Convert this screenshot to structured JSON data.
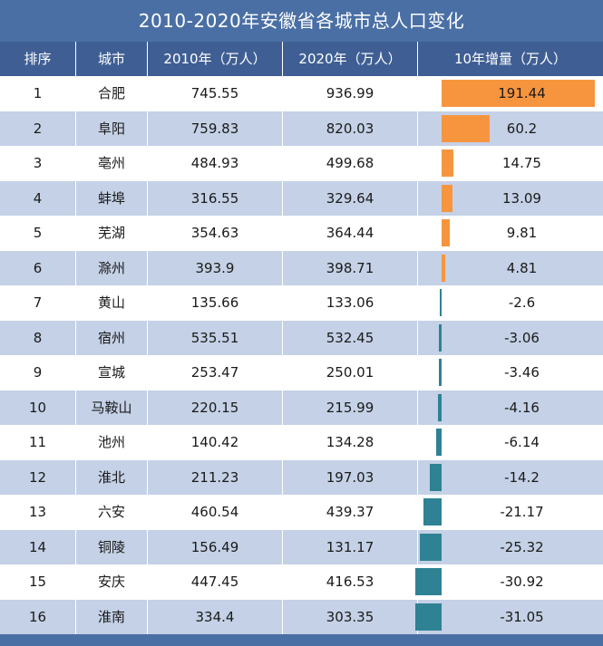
{
  "title": "2010-2020年安徽省各城市总人口变化",
  "headers": {
    "rank": "排序",
    "city": "城市",
    "y2010": "2010年（万人）",
    "y2020": "2020年（万人）",
    "growth": "10年增量（万人）"
  },
  "rows": [
    {
      "rank": "1",
      "city": "合肥",
      "y2010": "745.55",
      "y2020": "936.99",
      "growth": "191.44"
    },
    {
      "rank": "2",
      "city": "阜阳",
      "y2010": "759.83",
      "y2020": "820.03",
      "growth": "60.2"
    },
    {
      "rank": "3",
      "city": "亳州",
      "y2010": "484.93",
      "y2020": "499.68",
      "growth": "14.75"
    },
    {
      "rank": "4",
      "city": "蚌埠",
      "y2010": "316.55",
      "y2020": "329.64",
      "growth": "13.09"
    },
    {
      "rank": "5",
      "city": "芜湖",
      "y2010": "354.63",
      "y2020": "364.44",
      "growth": "9.81"
    },
    {
      "rank": "6",
      "city": "滁州",
      "y2010": "393.9",
      "y2020": "398.71",
      "growth": "4.81"
    },
    {
      "rank": "7",
      "city": "黄山",
      "y2010": "135.66",
      "y2020": "133.06",
      "growth": "-2.6"
    },
    {
      "rank": "8",
      "city": "宿州",
      "y2010": "535.51",
      "y2020": "532.45",
      "growth": "-3.06"
    },
    {
      "rank": "9",
      "city": "宣城",
      "y2010": "253.47",
      "y2020": "250.01",
      "growth": "-3.46"
    },
    {
      "rank": "10",
      "city": "马鞍山",
      "y2010": "220.15",
      "y2020": "215.99",
      "growth": "-4.16"
    },
    {
      "rank": "11",
      "city": "池州",
      "y2010": "140.42",
      "y2020": "134.28",
      "growth": "-6.14"
    },
    {
      "rank": "12",
      "city": "淮北",
      "y2010": "211.23",
      "y2020": "197.03",
      "growth": "-14.2"
    },
    {
      "rank": "13",
      "city": "六安",
      "y2010": "460.54",
      "y2020": "439.37",
      "growth": "-21.17"
    },
    {
      "rank": "14",
      "city": "铜陵",
      "y2010": "156.49",
      "y2020": "131.17",
      "growth": "-25.32"
    },
    {
      "rank": "15",
      "city": "安庆",
      "y2010": "447.45",
      "y2020": "416.53",
      "growth": "-30.92"
    },
    {
      "rank": "16",
      "city": "淮南",
      "y2010": "334.4",
      "y2020": "303.35",
      "growth": "-31.05"
    }
  ],
  "colors": {
    "title_bg": "#4a6fa5",
    "header_bg": "#3f5f94",
    "row_alt": "#c4d1e6",
    "positive_bar": "#f7953f",
    "negative_bar": "#2e8294"
  },
  "chart_data": {
    "type": "table",
    "title": "2010-2020年安徽省各城市总人口变化",
    "columns": [
      "排序",
      "城市",
      "2010年（万人）",
      "2020年（万人）",
      "10年增量（万人）"
    ],
    "categories": [
      "合肥",
      "阜阳",
      "亳州",
      "蚌埠",
      "芜湖",
      "滁州",
      "黄山",
      "宿州",
      "宣城",
      "马鞍山",
      "池州",
      "淮北",
      "六安",
      "铜陵",
      "安庆",
      "淮南"
    ],
    "series": [
      {
        "name": "2010年（万人）",
        "values": [
          745.55,
          759.83,
          484.93,
          316.55,
          354.63,
          393.9,
          135.66,
          535.51,
          253.47,
          220.15,
          140.42,
          211.23,
          460.54,
          156.49,
          447.45,
          334.4
        ]
      },
      {
        "name": "2020年（万人）",
        "values": [
          936.99,
          820.03,
          499.68,
          329.64,
          364.44,
          398.71,
          133.06,
          532.45,
          250.01,
          215.99,
          134.28,
          197.03,
          439.37,
          131.17,
          416.53,
          303.35
        ]
      },
      {
        "name": "10年增量（万人）",
        "values": [
          191.44,
          60.2,
          14.75,
          13.09,
          9.81,
          4.81,
          -2.6,
          -3.06,
          -3.46,
          -4.16,
          -6.14,
          -14.2,
          -21.17,
          -25.32,
          -30.92,
          -31.05
        ]
      }
    ],
    "data_bar_column": "10年增量（万人）",
    "data_bar_range": [
      -31.05,
      191.44
    ]
  }
}
